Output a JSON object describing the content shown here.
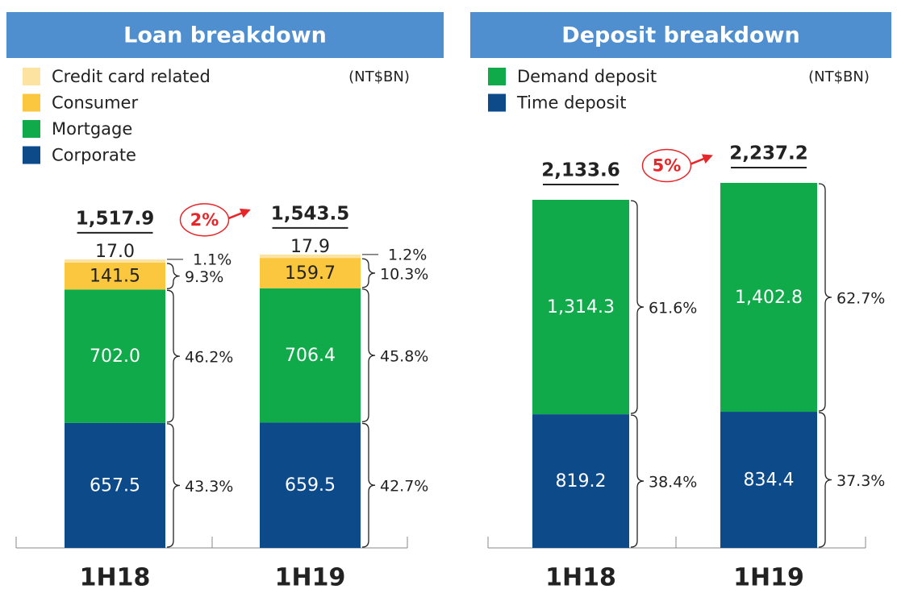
{
  "chart_data": [
    {
      "type": "stacked_bar",
      "title": "Loan breakdown",
      "unit": "(NT$BN)",
      "categories": [
        "1H18",
        "1H19"
      ],
      "series": [
        {
          "name": "Corporate",
          "color": "#0c4a8a",
          "values": [
            657.5,
            659.5
          ],
          "value_labels": [
            "657.5",
            "659.5"
          ],
          "shares": [
            43.3,
            42.7
          ],
          "share_labels": [
            "43.3%",
            "42.7%"
          ]
        },
        {
          "name": "Mortgage",
          "color": "#10aa4b",
          "values": [
            702.0,
            706.4
          ],
          "value_labels": [
            "702.0",
            "706.4"
          ],
          "shares": [
            46.2,
            45.8
          ],
          "share_labels": [
            "46.2%",
            "45.8%"
          ]
        },
        {
          "name": "Consumer",
          "color": "#fbc73f",
          "values": [
            141.5,
            159.7
          ],
          "value_labels": [
            "141.5",
            "159.7"
          ],
          "shares": [
            9.3,
            10.3
          ],
          "share_labels": [
            "9.3%",
            "10.3%"
          ]
        },
        {
          "name": "Credit card related",
          "color": "#fde3a2",
          "values": [
            17.0,
            17.9
          ],
          "value_labels": [
            "17.0",
            "17.9"
          ],
          "shares": [
            1.1,
            1.2
          ],
          "share_labels": [
            "1.1%",
            "1.2%"
          ]
        }
      ],
      "totals": [
        1517.9,
        1543.5
      ],
      "total_labels": [
        "1,517.9",
        "1,543.5"
      ],
      "growth": 2,
      "growth_label": "2%"
    },
    {
      "type": "stacked_bar",
      "title": "Deposit breakdown",
      "unit": "(NT$BN)",
      "categories": [
        "1H18",
        "1H19"
      ],
      "series": [
        {
          "name": "Time deposit",
          "color": "#0c4a8a",
          "values": [
            819.2,
            834.4
          ],
          "value_labels": [
            "819.2",
            "834.4"
          ],
          "shares": [
            38.4,
            37.3
          ],
          "share_labels": [
            "38.4%",
            "37.3%"
          ]
        },
        {
          "name": "Demand deposit",
          "color": "#10aa4b",
          "values": [
            1314.3,
            1402.8
          ],
          "value_labels": [
            "1,314.3",
            "1,402.8"
          ],
          "shares": [
            61.6,
            62.7
          ],
          "share_labels": [
            "61.6%",
            "62.7%"
          ]
        }
      ],
      "totals": [
        2133.6,
        2237.2
      ],
      "total_labels": [
        "2,133.6",
        "2,237.2"
      ],
      "growth": 5,
      "growth_label": "5%"
    }
  ]
}
